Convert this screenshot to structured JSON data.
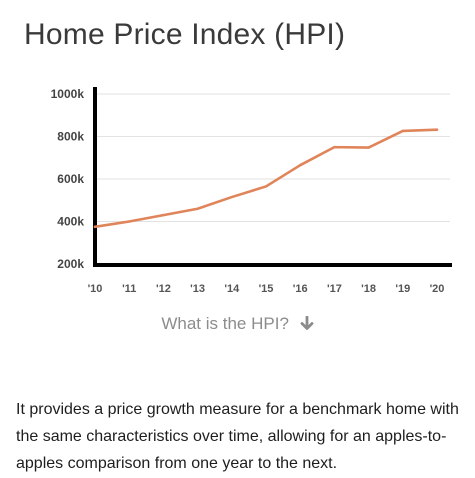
{
  "title": "Home Price Index (HPI)",
  "link_text": "What is the HPI?",
  "link_icon": "arrow-down-icon",
  "description": "It provides a price growth measure for a benchmark home with the same characteristics over time, allowing for an apples-to-apples comparison from one year to the next.",
  "colors": {
    "line": "#e0845a",
    "grid": "#e2e2e2",
    "axis": "#000000",
    "link": "#8c8c8c"
  },
  "chart_data": {
    "type": "line",
    "title": "",
    "xlabel": "",
    "ylabel": "",
    "categories": [
      "'10",
      "'11",
      "'12",
      "'13",
      "'14",
      "'15",
      "'16",
      "'17",
      "'18",
      "'19",
      "'20"
    ],
    "yticks": [
      "1000k",
      "800k",
      "600k",
      "400k",
      "200k"
    ],
    "ytick_values": [
      1000000,
      800000,
      600000,
      400000,
      200000
    ],
    "ylim": [
      200000,
      1000000
    ],
    "grid": true,
    "series": [
      {
        "values": [
          375000,
          400000,
          430000,
          460000,
          515000,
          565000,
          665000,
          750000,
          748000,
          826000,
          832000
        ]
      }
    ]
  }
}
